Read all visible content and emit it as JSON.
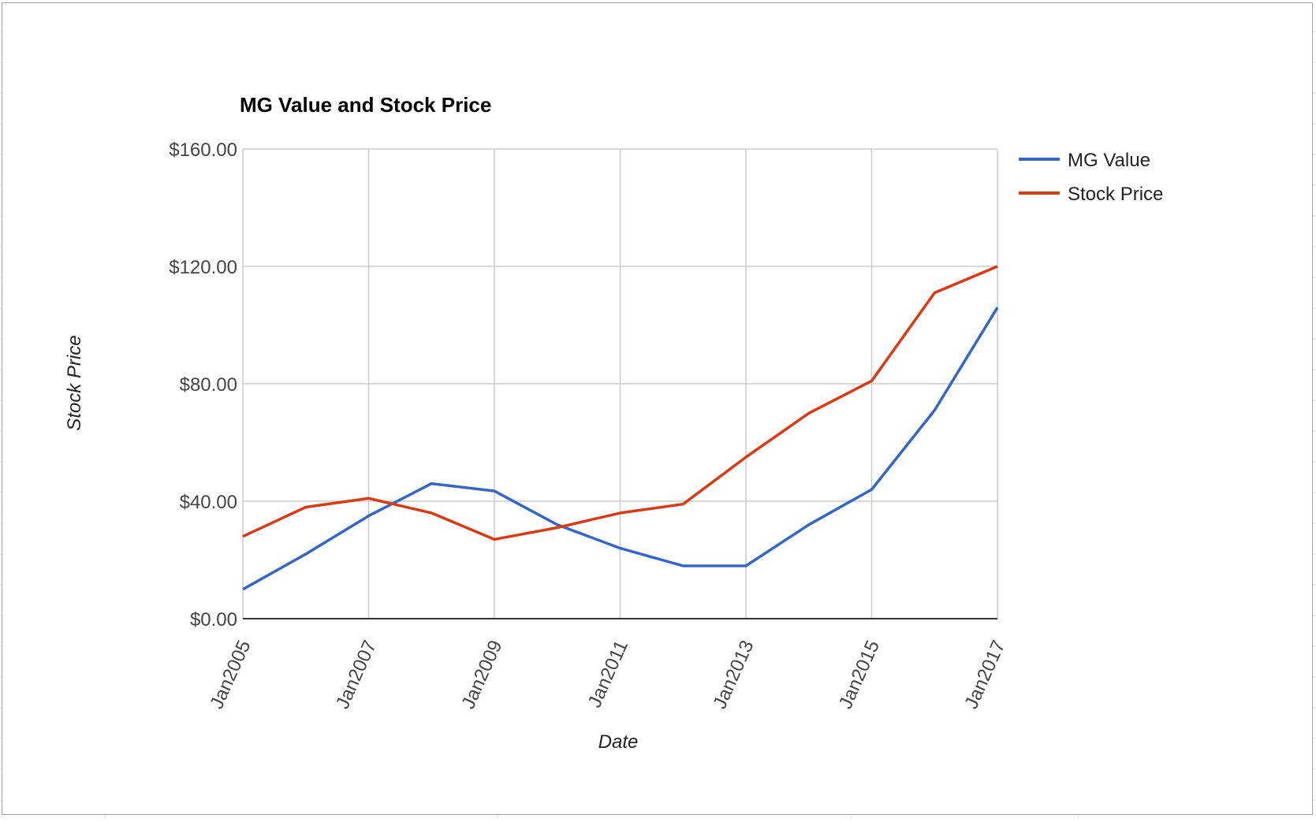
{
  "chart_data": {
    "type": "line",
    "title": "MG Value and Stock Price",
    "xlabel": "Date",
    "ylabel": "Stock Price",
    "x_ticks": [
      "Jan2005",
      "Jan2007",
      "Jan2009",
      "Jan2011",
      "Jan2013",
      "Jan2015",
      "Jan2017"
    ],
    "y_ticks": [
      "$0.00",
      "$40.00",
      "$80.00",
      "$120.00",
      "$160.00"
    ],
    "ylim": [
      0,
      160
    ],
    "xlim": [
      "2005-01",
      "2017-01"
    ],
    "grid": true,
    "legend_position": "right",
    "x": [
      "2005-01",
      "2006-01",
      "2007-01",
      "2008-01",
      "2009-01",
      "2010-01",
      "2011-01",
      "2012-01",
      "2013-01",
      "2014-01",
      "2015-01",
      "2016-01",
      "2017-01"
    ],
    "series": [
      {
        "name": "MG Value",
        "color": "#3366cc",
        "values": [
          10,
          22,
          35,
          46,
          43.5,
          32,
          24,
          18,
          18,
          32,
          44,
          71,
          106
        ]
      },
      {
        "name": "Stock Price",
        "color": "#dc3912",
        "values": [
          28,
          38,
          41,
          36,
          27,
          31,
          36,
          39,
          55,
          70,
          81,
          111,
          120
        ]
      }
    ]
  }
}
